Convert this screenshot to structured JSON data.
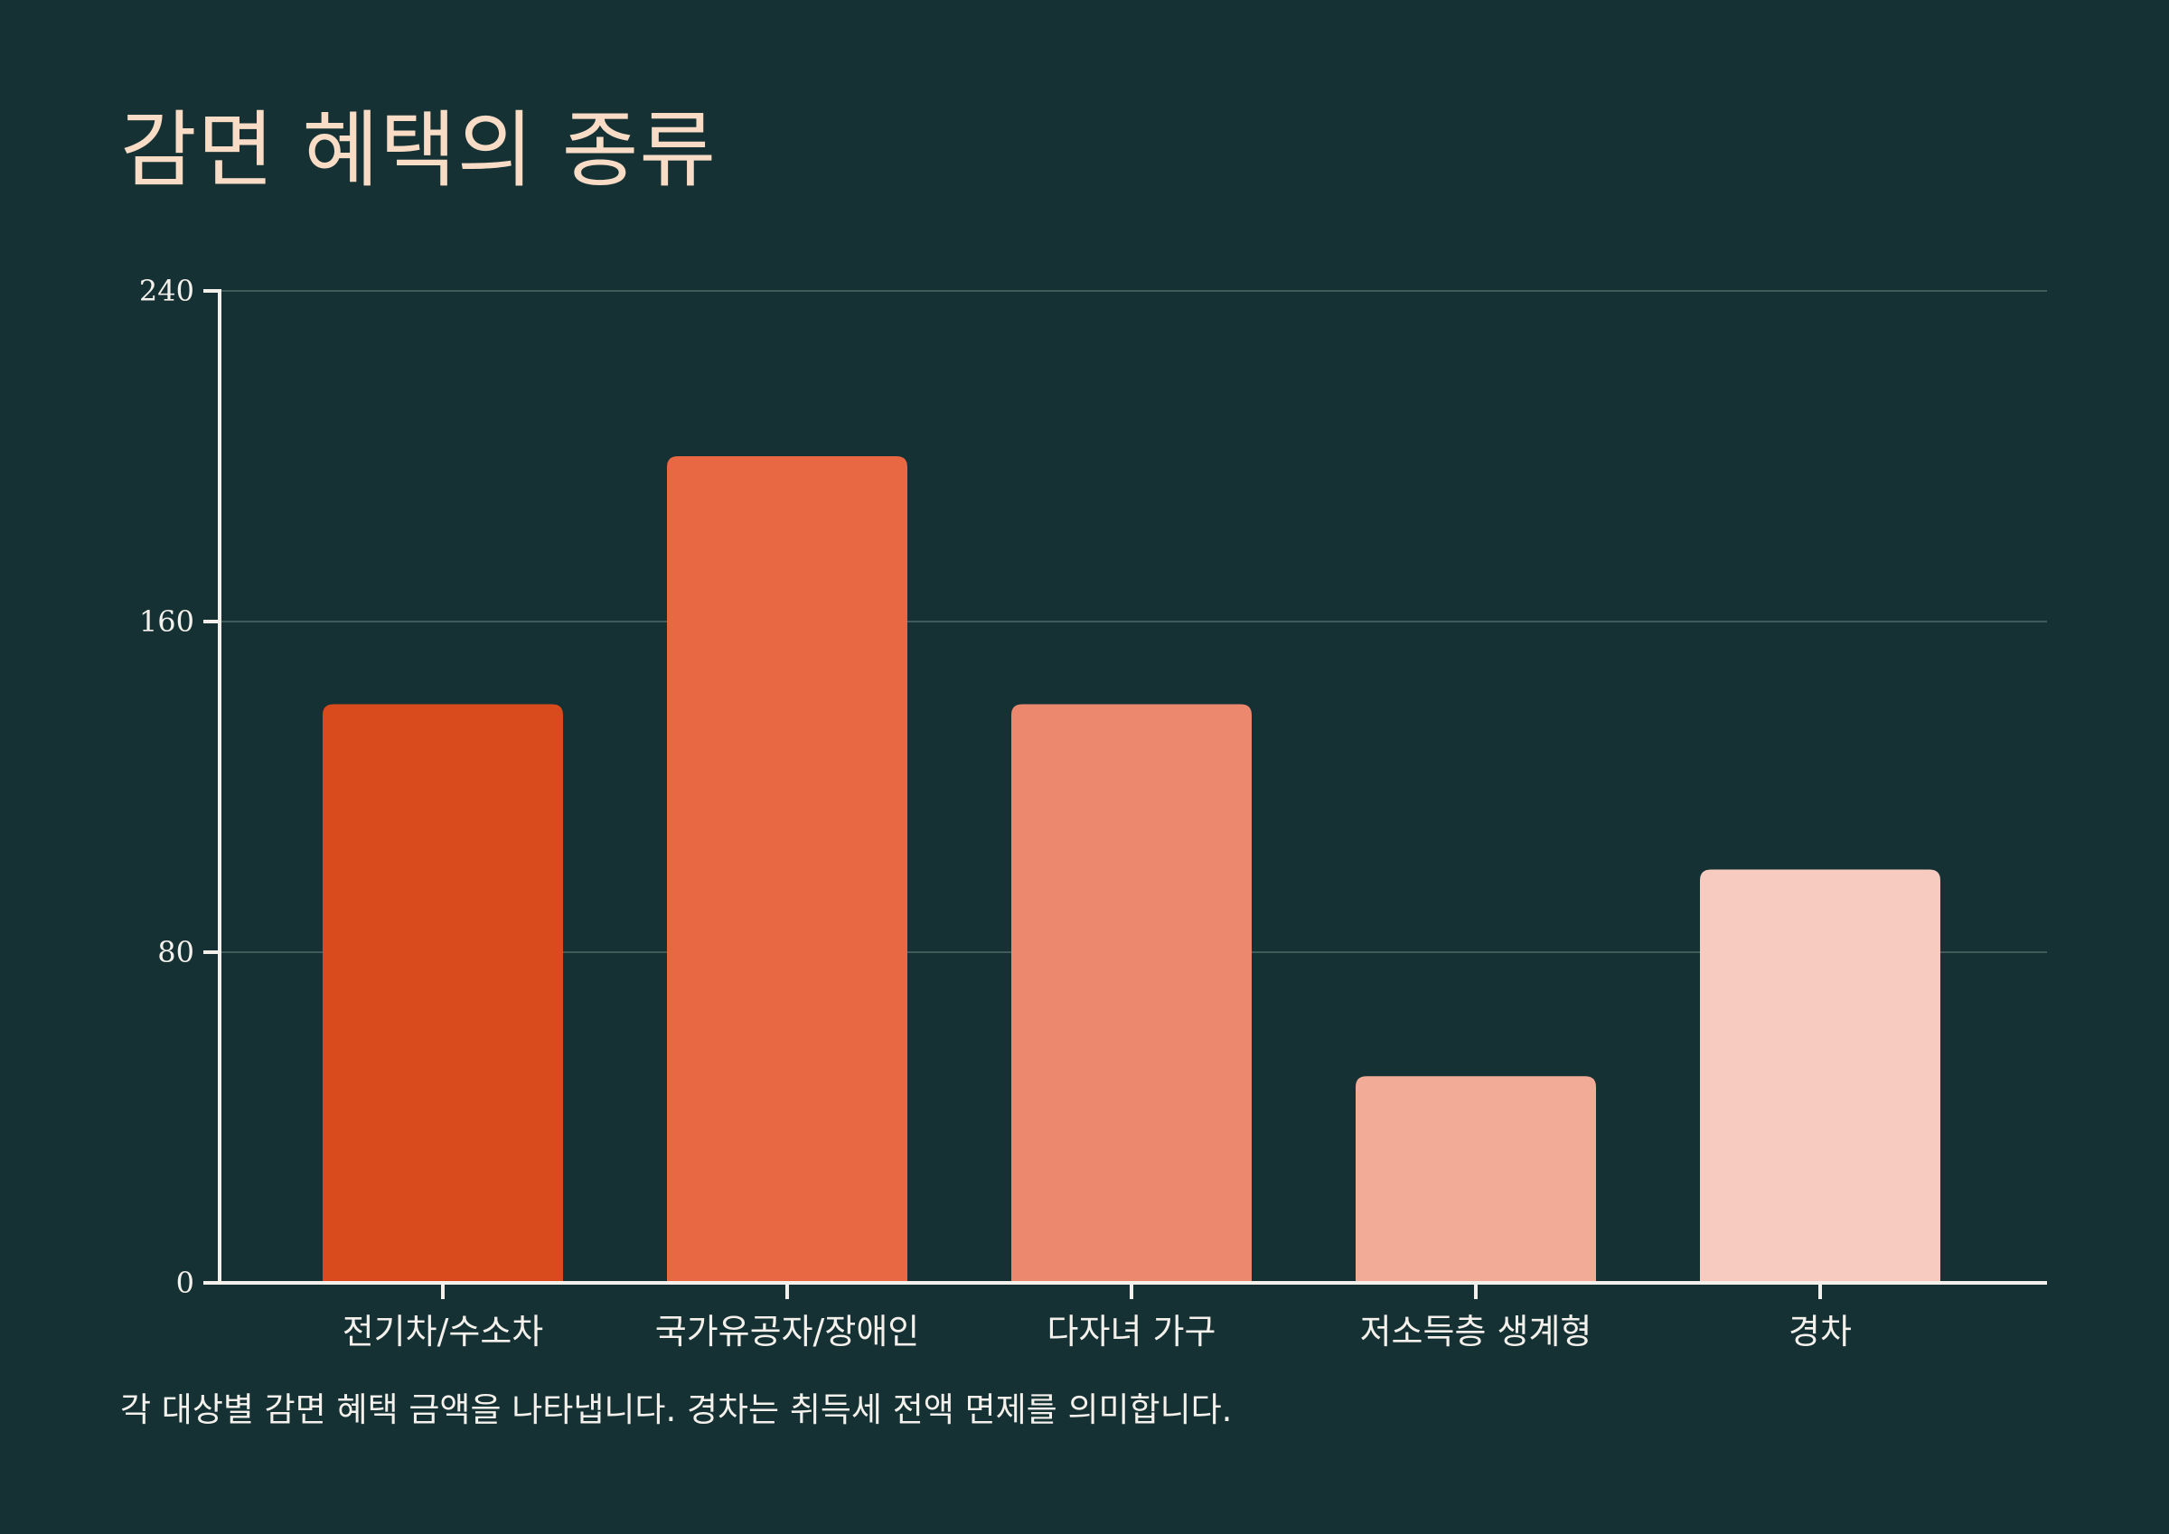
{
  "chart_data": {
    "type": "bar",
    "title": "감면 혜택의 종류",
    "caption": "각 대상별 감면 혜택 금액을 나타냅니다. 경차는 취득세 전액 면제를 의미합니다.",
    "categories": [
      "전기차/수소차",
      "국가유공자/장애인",
      "다자녀 가구",
      "저소득층 생계형",
      "경차"
    ],
    "values": [
      140,
      200,
      140,
      50,
      100
    ],
    "colors": [
      "#d94b1c",
      "#e76842",
      "#ec886d",
      "#f1ab97",
      "#f7cbbf"
    ],
    "ylim": [
      0,
      240
    ],
    "yticks": [
      0,
      80,
      160,
      240
    ],
    "grid": true,
    "xlabel": "",
    "ylabel": ""
  }
}
